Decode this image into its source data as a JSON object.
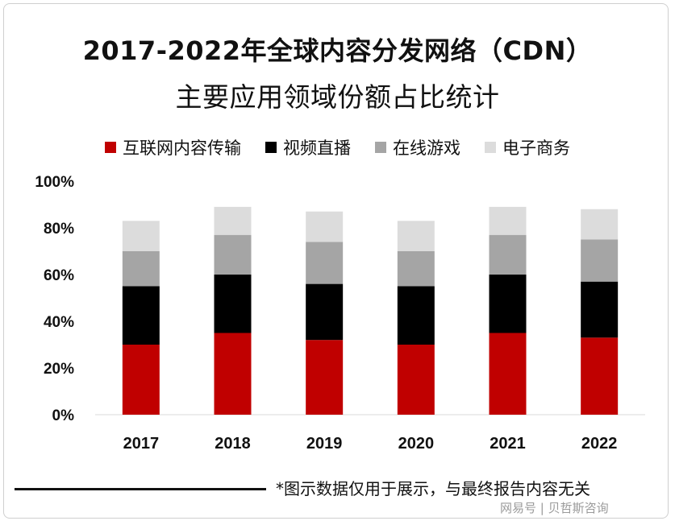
{
  "chart_data": {
    "type": "bar",
    "stacked": true,
    "title": "2017-2022年全球内容分发网络（CDN）",
    "subtitle": "主要应用领域份额占比统计",
    "categories": [
      "2017",
      "2018",
      "2019",
      "2020",
      "2021",
      "2022"
    ],
    "series": [
      {
        "name": "互联网内容传输",
        "color": "#c00000",
        "values": [
          30,
          35,
          32,
          30,
          35,
          33
        ]
      },
      {
        "name": "视频直播",
        "color": "#000000",
        "values": [
          25,
          25,
          24,
          25,
          25,
          24
        ]
      },
      {
        "name": "在线游戏",
        "color": "#a5a5a5",
        "values": [
          15,
          17,
          18,
          15,
          17,
          18
        ]
      },
      {
        "name": "电子商务",
        "color": "#dcdcdc",
        "values": [
          13,
          12,
          13,
          13,
          12,
          13
        ]
      }
    ],
    "ylim": [
      0,
      100
    ],
    "yticks": [
      "0%",
      "20%",
      "40%",
      "60%",
      "80%",
      "100%"
    ],
    "xlabel": "",
    "ylabel": "",
    "grid": false,
    "legend_position": "top"
  },
  "footnote": "*图示数据仅用于展示，与最终报告内容无关",
  "watermark": "网易号 | 贝哲斯咨询"
}
